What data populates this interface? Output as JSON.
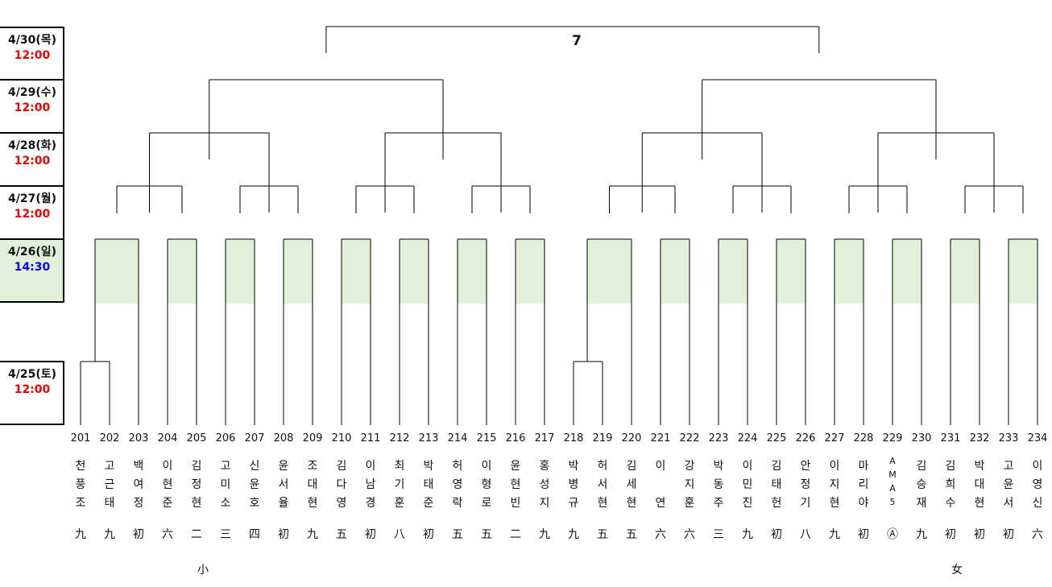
{
  "final": {
    "label": "7"
  },
  "dates": [
    {
      "date": "4/30(목)",
      "time": "12:00",
      "time_color": "#e00000"
    },
    {
      "date": "4/29(수)",
      "time": "12:00",
      "time_color": "#e00000"
    },
    {
      "date": "4/28(화)",
      "time": "12:00",
      "time_color": "#e00000"
    },
    {
      "date": "4/27(월)",
      "time": "12:00",
      "time_color": "#e00000"
    },
    {
      "date": "4/26(일)",
      "time": "14:30",
      "time_color": "#0000e0"
    },
    {
      "date": "4/25(토)",
      "time": "12:00",
      "time_color": "#e00000"
    }
  ],
  "players": [
    {
      "no": "201",
      "name": [
        "천",
        "풍",
        "조"
      ],
      "rank": "九",
      "note": ""
    },
    {
      "no": "202",
      "name": [
        "고",
        "근",
        "태"
      ],
      "rank": "九",
      "note": ""
    },
    {
      "no": "203",
      "name": [
        "백",
        "여",
        "정"
      ],
      "rank": "初",
      "note": ""
    },
    {
      "no": "204",
      "name": [
        "이",
        "현",
        "준"
      ],
      "rank": "六",
      "note": ""
    },
    {
      "no": "205",
      "name": [
        "김",
        "정",
        "현"
      ],
      "rank": "二",
      "note": "小"
    },
    {
      "no": "206",
      "name": [
        "고",
        "미",
        "소"
      ],
      "rank": "三",
      "note": ""
    },
    {
      "no": "207",
      "name": [
        "신",
        "윤",
        "호"
      ],
      "rank": "四",
      "note": ""
    },
    {
      "no": "208",
      "name": [
        "윤",
        "서",
        "율"
      ],
      "rank": "初",
      "note": ""
    },
    {
      "no": "209",
      "name": [
        "조",
        "대",
        "현"
      ],
      "rank": "九",
      "note": ""
    },
    {
      "no": "210",
      "name": [
        "김",
        "다",
        "영"
      ],
      "rank": "五",
      "note": ""
    },
    {
      "no": "211",
      "name": [
        "이",
        "남",
        "경"
      ],
      "rank": "初",
      "note": ""
    },
    {
      "no": "212",
      "name": [
        "최",
        "기",
        "훈"
      ],
      "rank": "八",
      "note": ""
    },
    {
      "no": "213",
      "name": [
        "박",
        "태",
        "준"
      ],
      "rank": "初",
      "note": ""
    },
    {
      "no": "214",
      "name": [
        "허",
        "영",
        "락"
      ],
      "rank": "五",
      "note": ""
    },
    {
      "no": "215",
      "name": [
        "이",
        "형",
        "로"
      ],
      "rank": "五",
      "note": ""
    },
    {
      "no": "216",
      "name": [
        "윤",
        "현",
        "빈"
      ],
      "rank": "二",
      "note": ""
    },
    {
      "no": "217",
      "name": [
        "홍",
        "성",
        "지"
      ],
      "rank": "九",
      "note": ""
    },
    {
      "no": "218",
      "name": [
        "박",
        "병",
        "규"
      ],
      "rank": "九",
      "note": ""
    },
    {
      "no": "219",
      "name": [
        "허",
        "서",
        "현"
      ],
      "rank": "五",
      "note": ""
    },
    {
      "no": "220",
      "name": [
        "김",
        "세",
        "현"
      ],
      "rank": "五",
      "note": ""
    },
    {
      "no": "221",
      "name": [
        "이",
        "",
        "연"
      ],
      "rank": "六",
      "note": ""
    },
    {
      "no": "222",
      "name": [
        "강",
        "지",
        "훈"
      ],
      "rank": "六",
      "note": ""
    },
    {
      "no": "223",
      "name": [
        "박",
        "동",
        "주"
      ],
      "rank": "三",
      "note": ""
    },
    {
      "no": "224",
      "name": [
        "이",
        "민",
        "진"
      ],
      "rank": "九",
      "note": ""
    },
    {
      "no": "225",
      "name": [
        "김",
        "태",
        "헌"
      ],
      "rank": "初",
      "note": ""
    },
    {
      "no": "226",
      "name": [
        "안",
        "정",
        "기"
      ],
      "rank": "八",
      "note": ""
    },
    {
      "no": "227",
      "name": [
        "이",
        "지",
        "현"
      ],
      "rank": "九",
      "note": ""
    },
    {
      "no": "228",
      "name": [
        "마",
        "리",
        "야"
      ],
      "rank": "初",
      "note": ""
    },
    {
      "no": "229",
      "name": [
        "A",
        "M",
        "A",
        "5"
      ],
      "rank": "Ⓐ",
      "note": ""
    },
    {
      "no": "230",
      "name": [
        "김",
        "승",
        "재"
      ],
      "rank": "九",
      "note": ""
    },
    {
      "no": "231",
      "name": [
        "김",
        "희",
        "수"
      ],
      "rank": "初",
      "note": "女"
    },
    {
      "no": "232",
      "name": [
        "박",
        "대",
        "현"
      ],
      "rank": "初",
      "note": ""
    },
    {
      "no": "233",
      "name": [
        "고",
        "윤",
        "서"
      ],
      "rank": "初",
      "note": ""
    },
    {
      "no": "234",
      "name": [
        "이",
        "영",
        "신"
      ],
      "rank": "六",
      "note": ""
    }
  ]
}
